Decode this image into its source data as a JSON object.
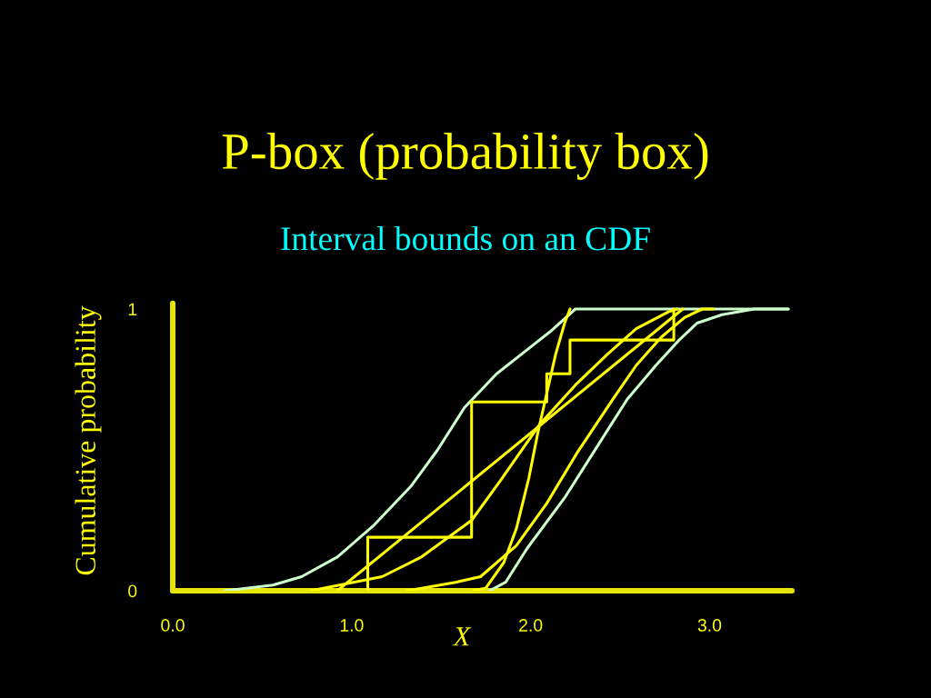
{
  "chart_data": {
    "type": "line",
    "title": "P-box (probability box)",
    "subtitle": "Interval bounds on an CDF",
    "xlabel": "X",
    "ylabel": "Cumulative probability",
    "xlim": [
      0,
      3.46
    ],
    "ylim": [
      0,
      1.02
    ],
    "xticks": [
      {
        "value": 0,
        "label": "0.0"
      },
      {
        "value": 1,
        "label": "1.0"
      },
      {
        "value": 2,
        "label": "2.0"
      },
      {
        "value": 3,
        "label": "3.0"
      }
    ],
    "yticks": [
      0,
      1
    ],
    "series": [
      {
        "color": "#ccffcc",
        "x": [
          0.29,
          0.56,
          0.72,
          0.92,
          1.12,
          1.33,
          1.48,
          1.63,
          1.81,
          1.99,
          2.11,
          2.25,
          3.44
        ],
        "values": [
          0,
          0.02,
          0.05,
          0.12,
          0.23,
          0.37,
          0.5,
          0.65,
          0.77,
          0.86,
          0.92,
          1.0,
          1.0
        ]
      },
      {
        "color": "#ccffcc",
        "x": [
          1.77,
          1.86,
          1.98,
          2.19,
          2.37,
          2.54,
          2.7,
          2.83,
          2.93,
          3.07,
          3.25,
          3.44
        ],
        "values": [
          0,
          0.03,
          0.15,
          0.33,
          0.51,
          0.68,
          0.8,
          0.89,
          0.95,
          0.98,
          1.0,
          1.0
        ]
      },
      {
        "color": "#ffff00",
        "x": [
          0.92,
          2.85
        ],
        "values": [
          0,
          1.0
        ]
      },
      {
        "color": "#ffff00",
        "x": [
          0.77,
          1.17,
          1.39,
          1.67,
          1.83,
          2.05,
          2.25,
          2.43,
          2.59,
          2.77,
          2.82
        ],
        "values": [
          0,
          0.05,
          0.12,
          0.25,
          0.39,
          0.59,
          0.73,
          0.84,
          0.93,
          0.99,
          1.0
        ]
      },
      {
        "color": "#ffff00",
        "x": [
          1.68,
          1.75,
          1.85,
          1.92,
          1.99,
          2.04,
          2.09,
          2.14,
          2.19,
          2.22
        ],
        "values": [
          0,
          0.01,
          0.1,
          0.22,
          0.4,
          0.56,
          0.7,
          0.84,
          0.95,
          1.0
        ]
      },
      {
        "color": "#ffff00",
        "x": [
          1.31,
          1.58,
          1.72,
          1.92,
          2.09,
          2.26,
          2.46,
          2.59,
          2.73,
          2.86,
          2.96,
          3.02
        ],
        "values": [
          0,
          0.03,
          0.05,
          0.16,
          0.31,
          0.49,
          0.68,
          0.8,
          0.9,
          0.97,
          1.0,
          1.0
        ]
      },
      {
        "type": "step",
        "color": "#ffff00",
        "x": [
          1.09,
          1.09,
          1.67,
          2.09,
          2.22,
          2.8
        ],
        "values": [
          0,
          0.19,
          0.67,
          0.77,
          0.89,
          1.0
        ]
      }
    ]
  }
}
